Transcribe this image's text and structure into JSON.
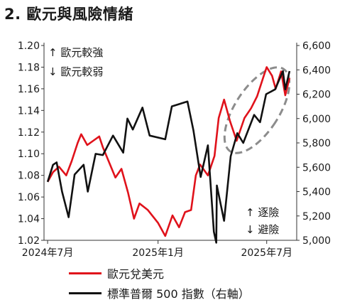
{
  "title": "2. 歐元與風險情緒",
  "chart_data": {
    "type": "line",
    "x_ticks": [
      "2024年7月",
      "2025年1月",
      "2025年7月"
    ],
    "y_left": {
      "ticks": [
        "1.20",
        "1.18",
        "1.16",
        "1.14",
        "1.12",
        "1.10",
        "1.08",
        "1.06",
        "1.04",
        "1.02"
      ],
      "ylim": [
        1.02,
        1.2
      ]
    },
    "y_right": {
      "ticks": [
        "6,600",
        "6,400",
        "6,200",
        "6,000",
        "5,800",
        "5,600",
        "5,400",
        "5,200",
        "5,000"
      ],
      "ylim": [
        5000,
        6600
      ]
    },
    "annotations": {
      "top_left_up": "↑ 歐元較強",
      "top_left_down": "↓ 歐元較弱",
      "bottom_right_up": "↑ 逐險",
      "bottom_right_down": "↓ 避險"
    },
    "series": [
      {
        "name": "歐元兌美元",
        "axis": "left",
        "color": "#e0121b",
        "points": [
          [
            "2024-07-01",
            1.074
          ],
          [
            "2024-07-10",
            1.083
          ],
          [
            "2024-07-20",
            1.088
          ],
          [
            "2024-08-01",
            1.08
          ],
          [
            "2024-08-10",
            1.093
          ],
          [
            "2024-08-20",
            1.11
          ],
          [
            "2024-08-26",
            1.118
          ],
          [
            "2024-09-05",
            1.108
          ],
          [
            "2024-09-15",
            1.112
          ],
          [
            "2024-09-25",
            1.116
          ],
          [
            "2024-10-01",
            1.106
          ],
          [
            "2024-10-10",
            1.094
          ],
          [
            "2024-10-22",
            1.078
          ],
          [
            "2024-11-01",
            1.086
          ],
          [
            "2024-11-12",
            1.064
          ],
          [
            "2024-11-22",
            1.04
          ],
          [
            "2024-12-01",
            1.054
          ],
          [
            "2024-12-15",
            1.048
          ],
          [
            "2025-01-01",
            1.036
          ],
          [
            "2025-01-13",
            1.024
          ],
          [
            "2025-01-25",
            1.043
          ],
          [
            "2025-02-05",
            1.032
          ],
          [
            "2025-02-15",
            1.046
          ],
          [
            "2025-02-25",
            1.048
          ],
          [
            "2025-03-05",
            1.08
          ],
          [
            "2025-03-12",
            1.09
          ],
          [
            "2025-03-25",
            1.08
          ],
          [
            "2025-04-05",
            1.098
          ],
          [
            "2025-04-12",
            1.133
          ],
          [
            "2025-04-21",
            1.15
          ],
          [
            "2025-05-01",
            1.13
          ],
          [
            "2025-05-12",
            1.112
          ],
          [
            "2025-05-25",
            1.133
          ],
          [
            "2025-06-05",
            1.142
          ],
          [
            "2025-06-15",
            1.153
          ],
          [
            "2025-06-25",
            1.17
          ],
          [
            "2025-07-01",
            1.18
          ],
          [
            "2025-07-10",
            1.172
          ],
          [
            "2025-07-16",
            1.16
          ],
          [
            "2025-07-25",
            1.176
          ],
          [
            "2025-08-01",
            1.154
          ],
          [
            "2025-08-08",
            1.17
          ]
        ]
      },
      {
        "name": "標準普爾 500 指數（右軸）",
        "axis": "right",
        "color": "#111111",
        "points": [
          [
            "2024-07-01",
            5480
          ],
          [
            "2024-07-10",
            5620
          ],
          [
            "2024-07-16",
            5640
          ],
          [
            "2024-07-25",
            5400
          ],
          [
            "2024-08-05",
            5190
          ],
          [
            "2024-08-15",
            5540
          ],
          [
            "2024-08-30",
            5620
          ],
          [
            "2024-09-06",
            5400
          ],
          [
            "2024-09-19",
            5710
          ],
          [
            "2024-10-01",
            5700
          ],
          [
            "2024-10-18",
            5860
          ],
          [
            "2024-11-04",
            5720
          ],
          [
            "2024-11-11",
            6000
          ],
          [
            "2024-11-20",
            5910
          ],
          [
            "2024-12-06",
            6090
          ],
          [
            "2024-12-18",
            5860
          ],
          [
            "2025-01-13",
            5830
          ],
          [
            "2025-01-24",
            6100
          ],
          [
            "2025-02-19",
            6140
          ],
          [
            "2025-03-01",
            5900
          ],
          [
            "2025-03-13",
            5520
          ],
          [
            "2025-03-25",
            5780
          ],
          [
            "2025-04-04",
            5070
          ],
          [
            "2025-04-08",
            4980
          ],
          [
            "2025-04-09",
            5450
          ],
          [
            "2025-04-21",
            5160
          ],
          [
            "2025-05-02",
            5690
          ],
          [
            "2025-05-13",
            5880
          ],
          [
            "2025-05-23",
            5800
          ],
          [
            "2025-06-10",
            6030
          ],
          [
            "2025-06-20",
            5970
          ],
          [
            "2025-06-30",
            6200
          ],
          [
            "2025-07-15",
            6240
          ],
          [
            "2025-07-28",
            6390
          ],
          [
            "2025-08-01",
            6240
          ],
          [
            "2025-08-08",
            6390
          ]
        ]
      }
    ]
  }
}
